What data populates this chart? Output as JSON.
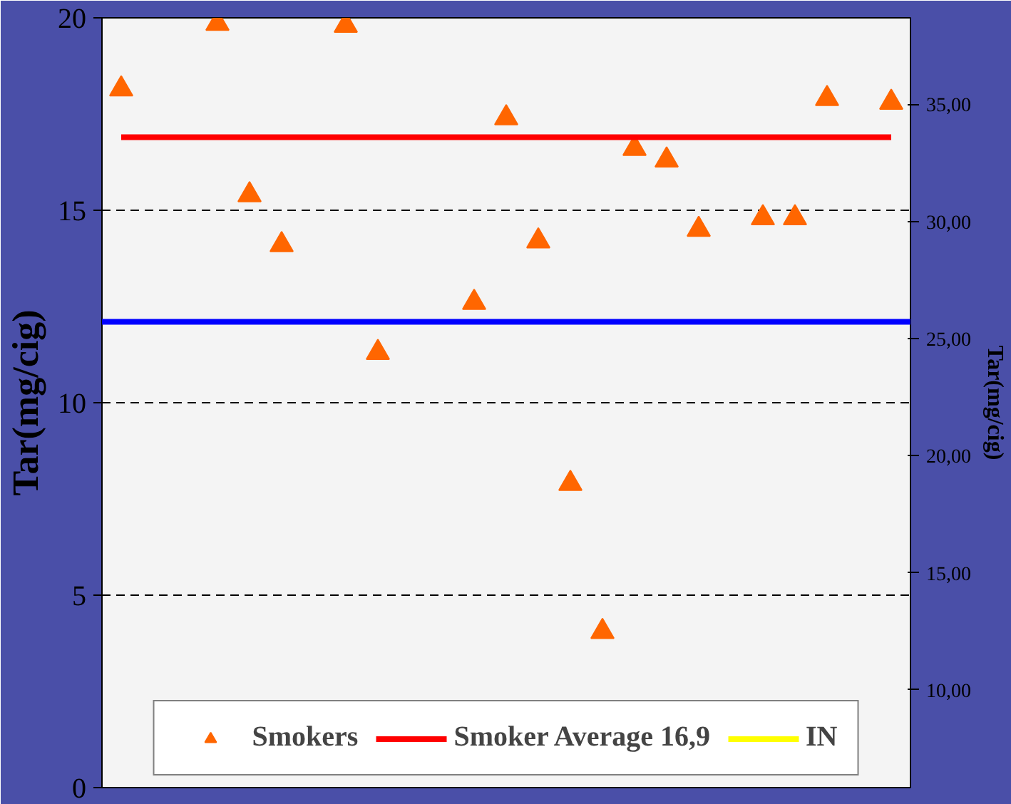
{
  "chart_data": {
    "type": "scatter",
    "ylabel": "Tar(mg/cig)",
    "y2label": "Tar(mg/cig)",
    "categories": [
      null,
      null,
      null,
      null,
      null,
      null,
      null,
      null,
      null,
      null,
      null,
      null,
      null,
      null,
      null,
      null,
      null,
      null,
      null,
      null,
      null,
      null,
      null,
      null,
      null
    ],
    "series": [
      {
        "name": "Smokers",
        "color": "#ff6600",
        "marker": "triangle",
        "values": [
          18.15,
          null,
          null,
          19.85,
          15.4,
          14.1,
          null,
          19.8,
          11.3,
          null,
          null,
          12.6,
          17.4,
          14.2,
          7.9,
          4.05,
          16.6,
          16.3,
          14.5,
          null,
          14.8,
          14.8,
          17.9,
          null,
          17.8
        ]
      },
      {
        "name": "Smoker Average 16,9",
        "type": "line",
        "color": "#ff0000",
        "values": [
          16.9,
          16.9,
          16.9,
          16.9,
          16.9,
          16.9,
          16.9,
          16.9,
          16.9,
          16.9,
          16.9,
          16.9,
          16.9,
          16.9,
          16.9,
          16.9,
          16.9,
          16.9,
          16.9,
          16.9,
          16.9,
          16.9,
          16.9,
          16.9,
          16.9
        ]
      },
      {
        "name": "IN",
        "type": "line",
        "color": "#ffff00",
        "values": [
          null,
          null,
          null,
          null,
          null,
          null,
          null,
          null,
          null,
          null,
          null,
          null,
          null,
          null,
          null,
          null,
          null,
          null,
          null,
          null,
          null,
          null,
          null,
          null,
          null
        ]
      }
    ],
    "ref_lines": [
      {
        "axis": "y",
        "value": 12.1,
        "color": "#0000ff"
      }
    ],
    "ylim": [
      0,
      20
    ],
    "yticks": [
      0,
      5,
      10,
      15,
      20
    ],
    "y2lim": [
      5.83,
      38.69
    ],
    "y2ticks": [
      {
        "value": 10,
        "label": "10,00"
      },
      {
        "value": 15,
        "label": "15,00"
      },
      {
        "value": 20,
        "label": "20,00"
      },
      {
        "value": 25,
        "label": "25,00"
      },
      {
        "value": 30,
        "label": "30,00"
      },
      {
        "value": 35,
        "label": "35,00"
      }
    ],
    "grid": "y",
    "legend": "bottom"
  }
}
